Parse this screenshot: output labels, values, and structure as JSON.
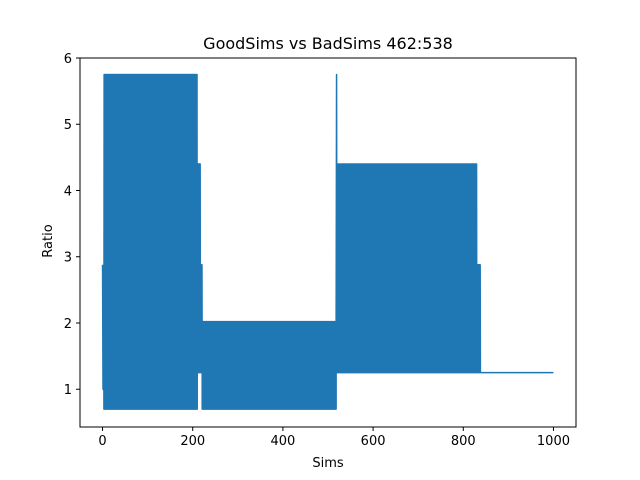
{
  "chart_data": {
    "type": "line",
    "title": "GoodSims vs BadSims 462:538",
    "xlabel": "Sims",
    "ylabel": "Ratio",
    "xlim": [
      -50,
      1050
    ],
    "ylim": [
      0.43,
      6.0
    ],
    "xticks": [
      0,
      200,
      400,
      600,
      800,
      1000
    ],
    "xtick_labels": [
      "0",
      "200",
      "400",
      "600",
      "800",
      "1000"
    ],
    "yticks": [
      1,
      2,
      3,
      4,
      5,
      6
    ],
    "ytick_labels": [
      "1",
      "2",
      "3",
      "4",
      "5",
      "6"
    ],
    "grid": false,
    "legend": null,
    "series": [
      {
        "color": "#1f77b4",
        "segments": [
          {
            "x_start": 0,
            "x_end": 1,
            "values": [
              2.88,
              1.0
            ]
          },
          {
            "x_start": 1,
            "x_end": 3,
            "values": [
              1.0,
              1.47,
              0.93
            ]
          },
          {
            "x_start": 3,
            "x_end": 210,
            "oscillate": [
              0.7,
              5.75
            ]
          },
          {
            "x_start": 210,
            "x_end": 217,
            "oscillate": [
              1.25,
              4.4
            ]
          },
          {
            "x_start": 217,
            "x_end": 221,
            "oscillate": [
              1.25,
              2.88
            ]
          },
          {
            "x_start": 221,
            "x_end": 518,
            "oscillate": [
              0.7,
              2.02
            ]
          },
          {
            "x_start": 518,
            "x_end": 520,
            "values": [
              2.0,
              5.75,
              1.25
            ]
          },
          {
            "x_start": 520,
            "x_end": 830,
            "oscillate": [
              1.25,
              4.4
            ],
            "inner": [
              1.4,
              2.88
            ]
          },
          {
            "x_start": 830,
            "x_end": 838,
            "oscillate": [
              1.25,
              2.88
            ]
          },
          {
            "x_start": 838,
            "x_end": 1000,
            "values": [
              1.25,
              1.25
            ]
          }
        ]
      }
    ]
  }
}
